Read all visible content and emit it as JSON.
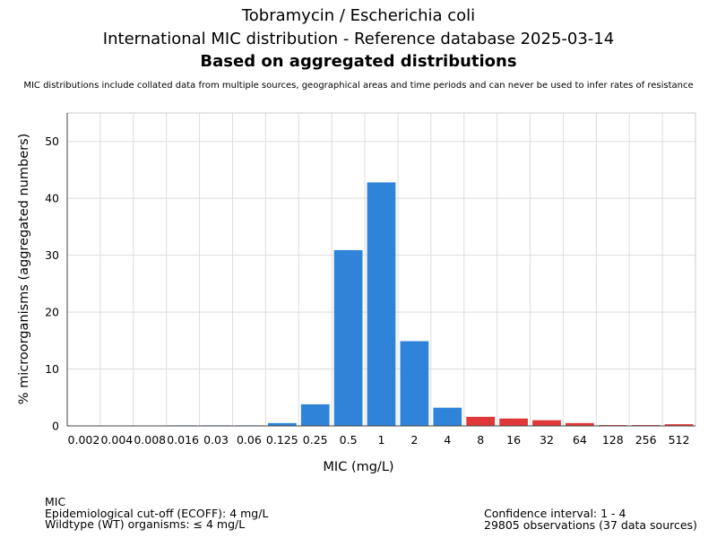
{
  "chart_data": {
    "type": "bar",
    "title": "Tobramycin / Escherichia coli",
    "subtitle": "International MIC distribution - Reference database 2025-03-14",
    "subtitle2": "Based on aggregated distributions",
    "note": "MIC distributions include collated data from multiple sources, geographical areas and time periods and can never be used to infer rates of resistance",
    "xlabel": "MIC (mg/L)",
    "ylabel": "% microorganisms (aggregated numbers)",
    "ylim": [
      0,
      55
    ],
    "yticks": [
      "0",
      "10",
      "20",
      "30",
      "40",
      "50"
    ],
    "grid": true,
    "categories": [
      "0.002",
      "0.004",
      "0.008",
      "0.016",
      "0.03",
      "0.06",
      "0.125",
      "0.25",
      "0.5",
      "1",
      "2",
      "4",
      "8",
      "16",
      "32",
      "64",
      "128",
      "256",
      "512"
    ],
    "values": [
      0,
      0,
      0,
      0.1,
      0.1,
      0.1,
      0.5,
      3.8,
      30.9,
      42.8,
      14.9,
      3.2,
      1.6,
      1.3,
      1.0,
      0.5,
      0.15,
      0.15,
      0.3
    ],
    "colors": {
      "wildtype": "#2f83d9",
      "non_wildtype": "#e03838"
    },
    "wildtype_max_index": 11
  },
  "footer": {
    "left": [
      "MIC",
      "Epidemiological cut-off (ECOFF): 4 mg/L",
      "Wildtype (WT) organisms: ≤ 4 mg/L"
    ],
    "right": [
      "Confidence interval: 1 - 4",
      "29805 observations (37 data sources)"
    ]
  }
}
